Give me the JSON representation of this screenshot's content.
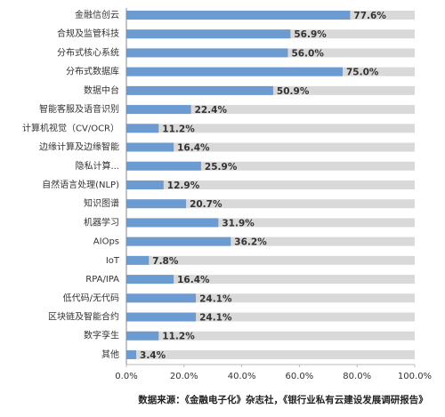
{
  "chart_data": {
    "type": "barh",
    "categories": [
      "金融信创云",
      "合规及监管科技",
      "分布式核心系统",
      "分布式数据库",
      "数据中台",
      "智能客服及语音识别",
      "计算机视觉（CV/OCR）",
      "边缘计算及边缘智能",
      "隐私计算...",
      "自然语言处理(NLP)",
      "知识图谱",
      "机器学习",
      "AIOps",
      "IoT",
      "RPA/IPA",
      "低代码/无代码",
      "区块链及智能合约",
      "数字孪生",
      "其他"
    ],
    "values": [
      77.6,
      56.9,
      56.0,
      75.0,
      50.9,
      22.4,
      11.2,
      16.4,
      25.9,
      12.9,
      20.7,
      31.9,
      36.2,
      7.8,
      16.4,
      24.1,
      24.1,
      11.2,
      3.4
    ],
    "value_labels": [
      "77.6%",
      "56.9%",
      "56.0%",
      "75.0%",
      "50.9%",
      "22.4%",
      "11.2%",
      "16.4%",
      "25.9%",
      "12.9%",
      "20.7%",
      "31.9%",
      "36.2%",
      "7.8%",
      "16.4%",
      "24.1%",
      "24.1%",
      "11.2%",
      "3.4%"
    ],
    "color": "#6c9bd2",
    "background_color": "#d9d9d9",
    "xlim": [
      0,
      100
    ],
    "xticks": [
      {
        "value": 0,
        "label": "0.0%"
      },
      {
        "value": 20,
        "label": "20.0%"
      },
      {
        "value": 40,
        "label": "40.0%"
      },
      {
        "value": 60,
        "label": "60.0%"
      },
      {
        "value": 80,
        "label": "80.0%"
      },
      {
        "value": 100,
        "label": "100.0%"
      }
    ],
    "source": "数据来源：《金融电子化》杂志社，《银行业私有云建设发展调研报告》"
  }
}
